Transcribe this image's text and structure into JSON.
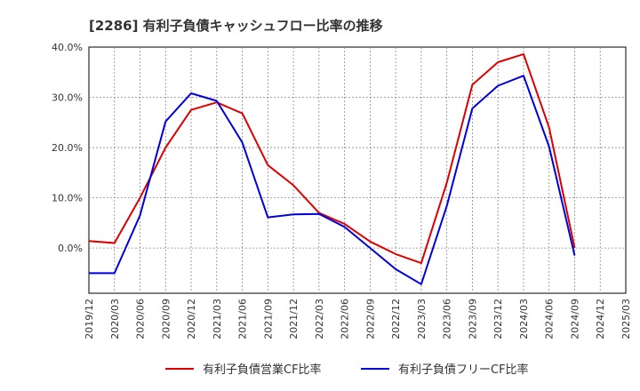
{
  "title": "[2286]  有利子負債キャッシュフロー比率の推移",
  "chart_data": {
    "type": "line",
    "title": "[2286]  有利子負債キャッシュフロー比率の推移",
    "xlabel": "",
    "ylabel": "",
    "x": [
      "2019/12",
      "2020/03",
      "2020/06",
      "2020/09",
      "2020/12",
      "2021/03",
      "2021/06",
      "2021/09",
      "2021/12",
      "2022/03",
      "2022/06",
      "2022/09",
      "2022/12",
      "2023/03",
      "2023/06",
      "2023/09",
      "2023/12",
      "2024/03",
      "2024/06",
      "2024/09"
    ],
    "x_ticks": [
      "2019/12",
      "2020/03",
      "2020/06",
      "2020/09",
      "2020/12",
      "2021/03",
      "2021/06",
      "2021/09",
      "2021/12",
      "2022/03",
      "2022/06",
      "2022/09",
      "2022/12",
      "2023/03",
      "2023/06",
      "2023/09",
      "2023/12",
      "2024/03",
      "2024/06",
      "2024/09",
      "2024/12",
      "2025/03"
    ],
    "y_ticks": [
      0,
      10,
      20,
      30,
      40
    ],
    "y_tick_labels": [
      "0.0%",
      "10.0%",
      "20.0%",
      "30.0%",
      "40.0%"
    ],
    "ylim": [
      -9,
      40
    ],
    "grid": true,
    "legend_position": "bottom",
    "series": [
      {
        "name": "有利子負債営業CF比率",
        "color": "#dd0000",
        "values": [
          1.4,
          1.0,
          10.0,
          20.0,
          27.5,
          29.0,
          26.8,
          16.5,
          12.5,
          7.0,
          4.8,
          1.3,
          -1.2,
          -3.0,
          13.0,
          32.5,
          37.0,
          38.6,
          24.0,
          0.0
        ]
      },
      {
        "name": "有利子負債フリーCF比率",
        "color": "#0000dd",
        "values": [
          -5.0,
          -5.0,
          6.5,
          25.2,
          30.8,
          29.3,
          21.0,
          6.1,
          6.7,
          6.8,
          4.2,
          0.0,
          -4.2,
          -7.2,
          8.4,
          27.8,
          32.3,
          34.3,
          20.2,
          -1.5
        ]
      }
    ]
  }
}
